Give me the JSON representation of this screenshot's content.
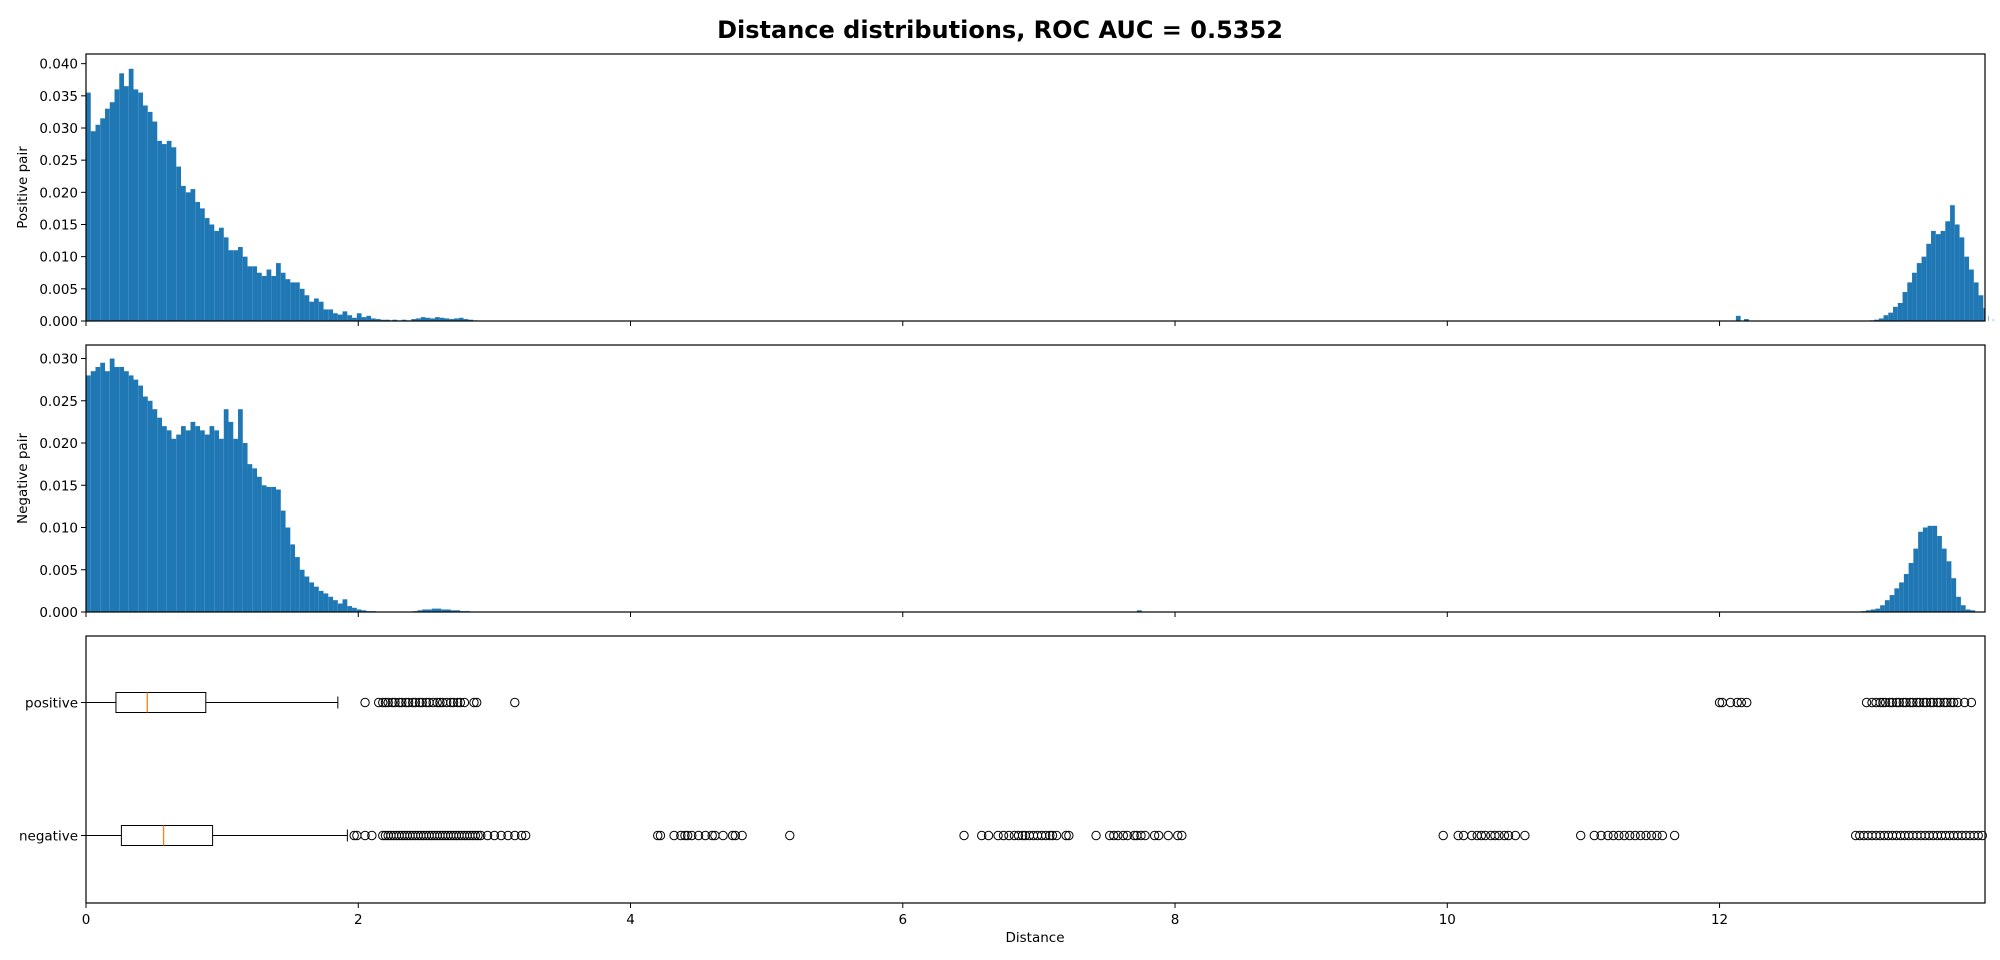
{
  "chart_data": {
    "title": "Distance distributions, ROC AUC = 0.5352",
    "xlabel": "Distance",
    "xlim": [
      0,
      13.95
    ],
    "x_ticks": [
      0,
      2,
      4,
      6,
      8,
      10,
      12
    ],
    "x_tick_labels": [
      "0",
      "2",
      "4",
      "6",
      "8",
      "10",
      "12"
    ],
    "bar_color": "#1f77b4",
    "median_color": "#ff7f0e",
    "panels": [
      {
        "type": "bar",
        "ylabel": "Positive pair",
        "ylim": [
          0,
          0.0415
        ],
        "y_ticks": [
          0,
          0.005,
          0.01,
          0.015,
          0.02,
          0.025,
          0.03,
          0.035,
          0.04
        ],
        "y_tick_labels": [
          "0.000",
          "0.005",
          "0.010",
          "0.015",
          "0.020",
          "0.025",
          "0.030",
          "0.035",
          "0.040"
        ],
        "bin_width": 0.0349,
        "segments": [
          {
            "start": 0.0,
            "heights": [
              0.0355,
              0.0295,
              0.0305,
              0.0315,
              0.033,
              0.034,
              0.036,
              0.0385,
              0.0365,
              0.0392,
              0.036,
              0.0355,
              0.0335,
              0.0325,
              0.031,
              0.028,
              0.0275,
              0.028,
              0.027,
              0.024,
              0.021,
              0.02,
              0.0205,
              0.0185,
              0.0175,
              0.016,
              0.015,
              0.014,
              0.0145,
              0.013,
              0.011,
              0.011,
              0.0115,
              0.01,
              0.0085,
              0.0085,
              0.0075,
              0.007,
              0.008,
              0.007,
              0.009,
              0.0075,
              0.0065,
              0.006,
              0.006,
              0.005,
              0.004,
              0.003,
              0.0035,
              0.003,
              0.0018,
              0.0018,
              0.0012,
              0.001,
              0.0015,
              0.0009,
              0.0005,
              0.0012,
              0.0006,
              0.0008,
              0.0004,
              0.0003,
              0.0002,
              0.0002,
              0.0001
            ]
          },
          {
            "start": 2.25,
            "heights": [
              0.0002,
              0.0001,
              0.0002,
              0.0001,
              0.0003,
              0.0004,
              0.0006,
              0.0005,
              0.0004,
              0.0006,
              0.0005,
              0.0004,
              0.0003,
              0.0004,
              0.0005,
              0.0003,
              0.0002,
              0.0001
            ]
          },
          {
            "start": 12.12,
            "heights": [
              0.0008
            ]
          },
          {
            "start": 12.18,
            "heights": [
              0.0003
            ]
          },
          {
            "start": 13.1,
            "heights": [
              0.0001,
              0.0002,
              0.0004,
              0.0009,
              0.0013,
              0.0022,
              0.0028,
              0.0045,
              0.006,
              0.0075,
              0.009,
              0.01,
              0.012,
              0.014,
              0.0135,
              0.014,
              0.0155,
              0.018,
              0.015,
              0.013,
              0.01,
              0.008,
              0.006,
              0.004,
              0.002,
              0.0008,
              0.0003
            ]
          }
        ]
      },
      {
        "type": "bar",
        "ylabel": "Negative pair",
        "ylim": [
          0,
          0.0316
        ],
        "y_ticks": [
          0,
          0.005,
          0.01,
          0.015,
          0.02,
          0.025,
          0.03
        ],
        "y_tick_labels": [
          "0.000",
          "0.005",
          "0.010",
          "0.015",
          "0.020",
          "0.025",
          "0.030"
        ],
        "bin_width": 0.0349,
        "segments": [
          {
            "start": 0.0,
            "heights": [
              0.028,
              0.0285,
              0.029,
              0.0295,
              0.0285,
              0.03,
              0.029,
              0.029,
              0.0285,
              0.028,
              0.0275,
              0.0268,
              0.0255,
              0.025,
              0.024,
              0.023,
              0.022,
              0.0215,
              0.0205,
              0.021,
              0.022,
              0.0215,
              0.0225,
              0.022,
              0.0215,
              0.021,
              0.022,
              0.0215,
              0.0205,
              0.024,
              0.0225,
              0.0205,
              0.024,
              0.02,
              0.0175,
              0.017,
              0.016,
              0.015,
              0.0148,
              0.0148,
              0.0145,
              0.012,
              0.01,
              0.008,
              0.0065,
              0.005,
              0.0042,
              0.0035,
              0.003,
              0.0025,
              0.0022,
              0.0018,
              0.0014,
              0.001,
              0.0015,
              0.0007,
              0.0005,
              0.0003,
              0.0002,
              0.0001,
              0.0001
            ]
          },
          {
            "start": 2.4,
            "heights": [
              0.0001,
              0.0002,
              0.0003,
              0.0003,
              0.0004,
              0.0004,
              0.0003,
              0.0003,
              0.0002,
              0.0002,
              0.0001,
              0.0001
            ]
          },
          {
            "start": 7.72,
            "heights": [
              0.0002
            ]
          },
          {
            "start": 13.04,
            "heights": [
              0.0001,
              0.0002,
              0.0003,
              0.0004,
              0.0008,
              0.0014,
              0.002,
              0.0028,
              0.0035,
              0.0045,
              0.0058,
              0.0075,
              0.0095,
              0.01,
              0.0102,
              0.0102,
              0.009,
              0.0075,
              0.006,
              0.004,
              0.0018,
              0.0008,
              0.0003,
              0.0002
            ]
          }
        ]
      },
      {
        "type": "box",
        "orientation": "horizontal",
        "categories": [
          "positive",
          "negative"
        ],
        "boxes": [
          {
            "label": "positive",
            "q1": 0.22,
            "median": 0.45,
            "q3": 0.88,
            "whisker_low": 0.0,
            "whisker_high": 1.85,
            "outliers": [
              2.05,
              2.15,
              2.18,
              2.2,
              2.22,
              2.25,
              2.27,
              2.3,
              2.32,
              2.35,
              2.37,
              2.4,
              2.42,
              2.45,
              2.47,
              2.5,
              2.52,
              2.55,
              2.58,
              2.6,
              2.62,
              2.65,
              2.68,
              2.7,
              2.73,
              2.75,
              2.78,
              2.85,
              2.87,
              3.15,
              12.0,
              12.02,
              12.08,
              12.13,
              12.16,
              12.2,
              13.08,
              13.12,
              13.15,
              13.18,
              13.2,
              13.22,
              13.25,
              13.27,
              13.3,
              13.32,
              13.35,
              13.37,
              13.4,
              13.42,
              13.45,
              13.47,
              13.5,
              13.52,
              13.55,
              13.57,
              13.6,
              13.62,
              13.65,
              13.67,
              13.7,
              13.72,
              13.75,
              13.8,
              13.85
            ]
          },
          {
            "label": "negative",
            "q1": 0.26,
            "median": 0.57,
            "q3": 0.93,
            "whisker_low": 0.0,
            "whisker_high": 1.92,
            "outliers": [
              1.97,
              1.99,
              2.05,
              2.1,
              2.18,
              2.2,
              2.22,
              2.24,
              2.26,
              2.28,
              2.3,
              2.32,
              2.34,
              2.36,
              2.38,
              2.4,
              2.42,
              2.44,
              2.46,
              2.48,
              2.5,
              2.52,
              2.54,
              2.56,
              2.58,
              2.6,
              2.62,
              2.64,
              2.66,
              2.68,
              2.7,
              2.72,
              2.74,
              2.76,
              2.78,
              2.8,
              2.82,
              2.84,
              2.86,
              2.88,
              2.9,
              2.95,
              3.0,
              3.05,
              3.1,
              3.15,
              3.2,
              3.23,
              4.2,
              4.22,
              4.32,
              4.37,
              4.4,
              4.42,
              4.45,
              4.5,
              4.55,
              4.6,
              4.62,
              4.68,
              4.75,
              4.77,
              4.82,
              5.17,
              6.45,
              6.58,
              6.63,
              6.7,
              6.74,
              6.78,
              6.82,
              6.85,
              6.88,
              6.9,
              6.93,
              6.96,
              6.99,
              7.02,
              7.05,
              7.08,
              7.1,
              7.13,
              7.2,
              7.22,
              7.42,
              7.52,
              7.55,
              7.58,
              7.62,
              7.65,
              7.7,
              7.72,
              7.75,
              7.78,
              7.85,
              7.88,
              7.95,
              8.02,
              8.05,
              9.97,
              10.08,
              10.12,
              10.18,
              10.22,
              10.25,
              10.28,
              10.32,
              10.35,
              10.38,
              10.42,
              10.45,
              10.5,
              10.57,
              10.98,
              11.08,
              11.13,
              11.18,
              11.22,
              11.26,
              11.3,
              11.34,
              11.38,
              11.42,
              11.46,
              11.5,
              11.54,
              11.58,
              11.67,
              13.0,
              13.03,
              13.06,
              13.09,
              13.12,
              13.15,
              13.18,
              13.21,
              13.24,
              13.27,
              13.3,
              13.33,
              13.36,
              13.39,
              13.42,
              13.45,
              13.48,
              13.51,
              13.54,
              13.57,
              13.6,
              13.63,
              13.66,
              13.69,
              13.72,
              13.75,
              13.78,
              13.81,
              13.84,
              13.87,
              13.9,
              13.93
            ]
          }
        ]
      }
    ]
  }
}
